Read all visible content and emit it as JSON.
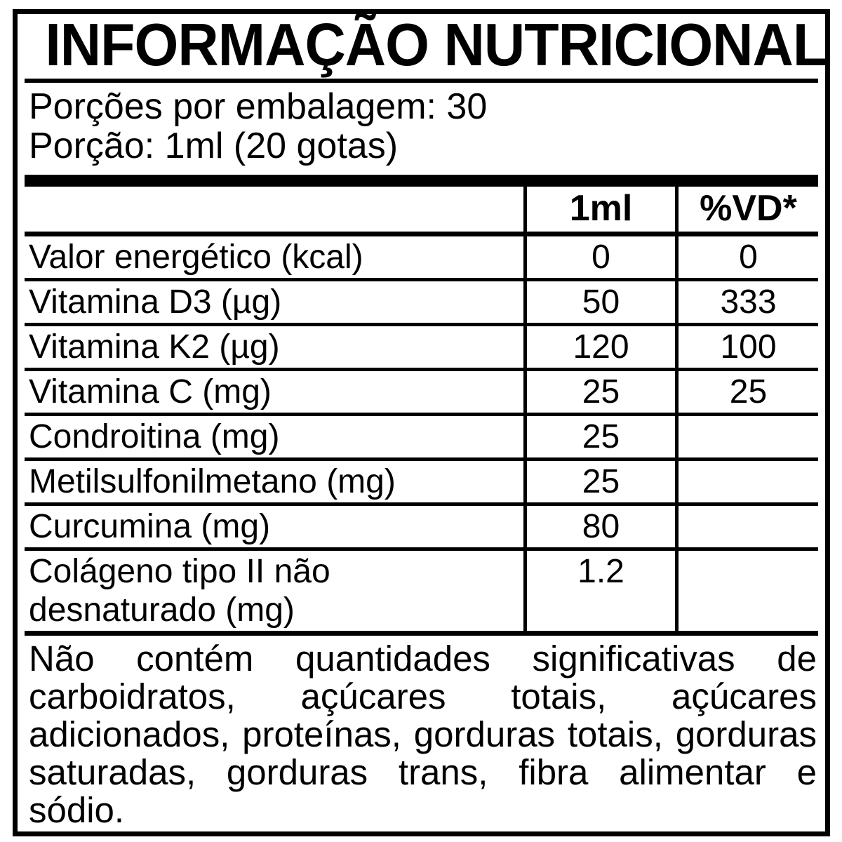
{
  "label": {
    "title": "INFORMAÇÃO NUTRICIONAL",
    "servings_line": "Porções por embalagem: 30",
    "serving_line": "Porção: 1ml (20 gotas)",
    "columns": {
      "amount": "1ml",
      "dv": "%VD*"
    },
    "rows": [
      {
        "name": "Valor energético (kcal)",
        "amount": "0",
        "dv": "0"
      },
      {
        "name": "Vitamina D3 (µg)",
        "amount": "50",
        "dv": "333"
      },
      {
        "name": "Vitamina K2 (µg)",
        "amount": "120",
        "dv": "100"
      },
      {
        "name": "Vitamina C (mg)",
        "amount": "25",
        "dv": "25"
      },
      {
        "name": "Condroitina (mg)",
        "amount": "25",
        "dv": ""
      },
      {
        "name": "Metilsulfonilmetano (mg)",
        "amount": "25",
        "dv": ""
      },
      {
        "name": "Curcumina (mg)",
        "amount": "80",
        "dv": ""
      },
      {
        "name": "Colágeno tipo II não desnaturado (mg)",
        "amount": "1.2",
        "dv": ""
      }
    ],
    "footnote": "Não contém quantidades significativas de carboidratos, açúcares totais, açúcares adicionados, proteínas, gorduras totais, gorduras saturadas, gorduras trans, fibra alimentar e sódio.",
    "colors": {
      "ink": "#000000",
      "paper": "#ffffff"
    }
  }
}
